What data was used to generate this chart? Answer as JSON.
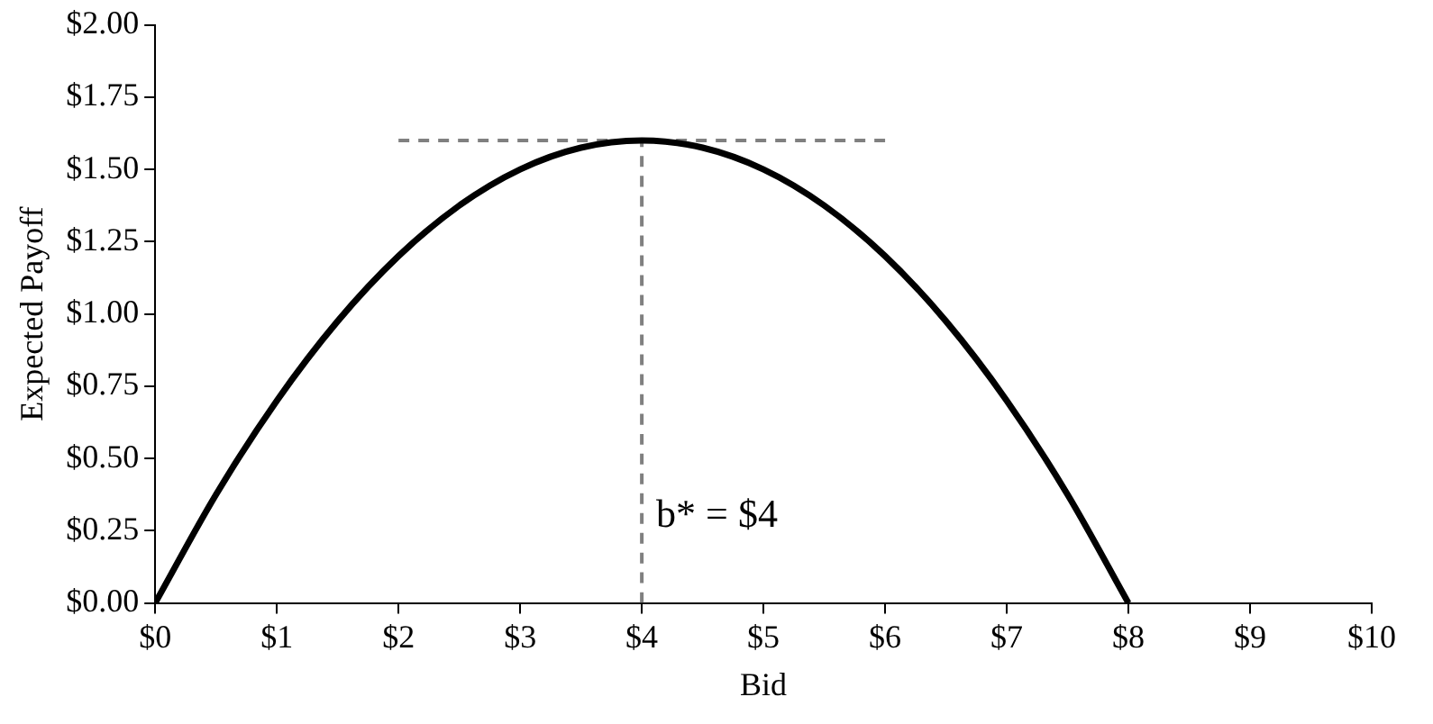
{
  "chart_data": {
    "type": "line",
    "xlabel": "Bid",
    "ylabel": "Expected Payoff",
    "marker": "none",
    "xlim": [
      0,
      10
    ],
    "xticks": [
      {
        "value": 0,
        "label": "$0"
      },
      {
        "value": 1,
        "label": "$1"
      },
      {
        "value": 2,
        "label": "$2"
      },
      {
        "value": 3,
        "label": "$3"
      },
      {
        "value": 4,
        "label": "$4"
      },
      {
        "value": 5,
        "label": "$5"
      },
      {
        "value": 6,
        "label": "$6"
      },
      {
        "value": 7,
        "label": "$7"
      },
      {
        "value": 8,
        "label": "$8"
      },
      {
        "value": 9,
        "label": "$9"
      },
      {
        "value": 10,
        "label": "$10"
      }
    ],
    "ylim": [
      0,
      2
    ],
    "yticks": [
      {
        "value": 0,
        "label": "$0.00"
      },
      {
        "value": 0.25,
        "label": "$0.25"
      },
      {
        "value": 0.5,
        "label": "$0.50"
      },
      {
        "value": 0.75,
        "label": "$0.75"
      },
      {
        "value": 1,
        "label": "$1.00"
      },
      {
        "value": 1.25,
        "label": "$1.25"
      },
      {
        "value": 1.5,
        "label": "$1.50"
      },
      {
        "value": 1.75,
        "label": "$1.75"
      },
      {
        "value": 2,
        "label": "$2.00"
      }
    ],
    "series": [
      {
        "color": "#000000",
        "line_style": "solid",
        "x": [
          0,
          0.5,
          1,
          1.5,
          2,
          2.5,
          3,
          3.5,
          4,
          4.5,
          5,
          5.5,
          6,
          6.5,
          7,
          7.5,
          8
        ],
        "values": [
          0,
          0.375,
          0.7,
          0.975,
          1.2,
          1.375,
          1.5,
          1.575,
          1.6,
          1.575,
          1.5,
          1.375,
          1.2,
          0.975,
          0.7,
          0.375,
          0
        ]
      },
      {
        "color": "#808080",
        "line_style": "dashed",
        "x": [
          2,
          6
        ],
        "values": [
          1.6,
          1.6
        ]
      },
      {
        "color": "#808080",
        "line_style": "dashed",
        "x": [
          4,
          4
        ],
        "values": [
          0,
          1.6
        ]
      }
    ],
    "annotations": [
      {
        "text": "b* = $4",
        "x": 4,
        "y": 0.3
      }
    ]
  }
}
